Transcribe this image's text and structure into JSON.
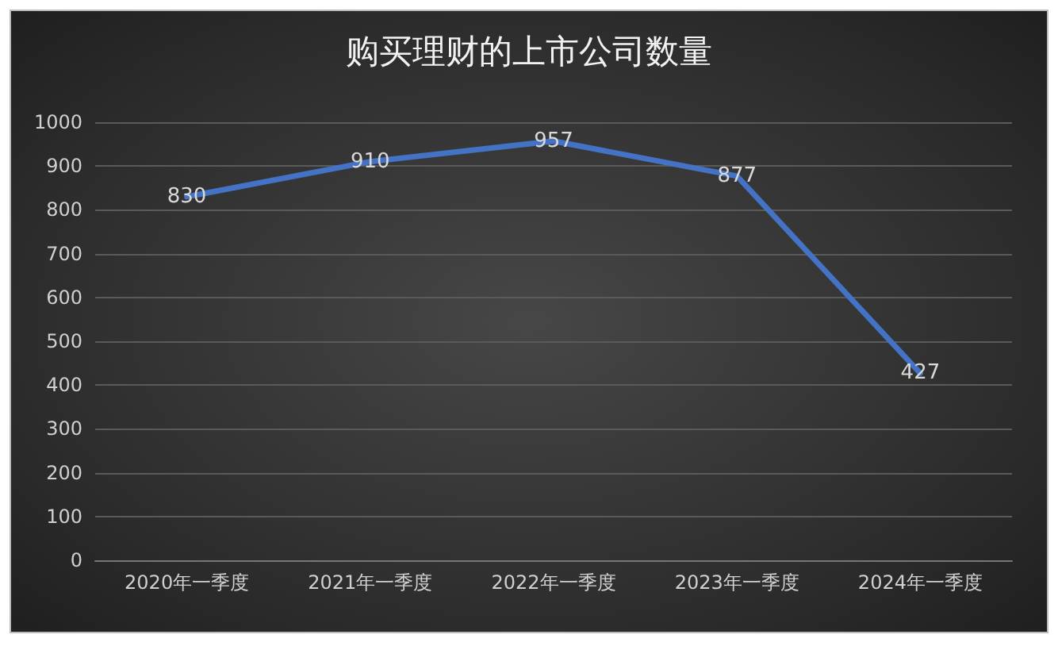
{
  "chart_data": {
    "type": "line",
    "title": "购买理财的上市公司数量",
    "categories": [
      "2020年一季度",
      "2021年一季度",
      "2022年一季度",
      "2023年一季度",
      "2024年一季度"
    ],
    "series": [
      {
        "color": "#4472c4",
        "values": [
          830,
          910,
          957,
          877,
          427
        ]
      }
    ],
    "ylim": [
      0,
      1000
    ],
    "yticks": [
      0,
      100,
      200,
      300,
      400,
      500,
      600,
      700,
      800,
      900,
      1000
    ],
    "grid": "y",
    "marker": "none",
    "line_style": "solid",
    "data_labels": true
  }
}
